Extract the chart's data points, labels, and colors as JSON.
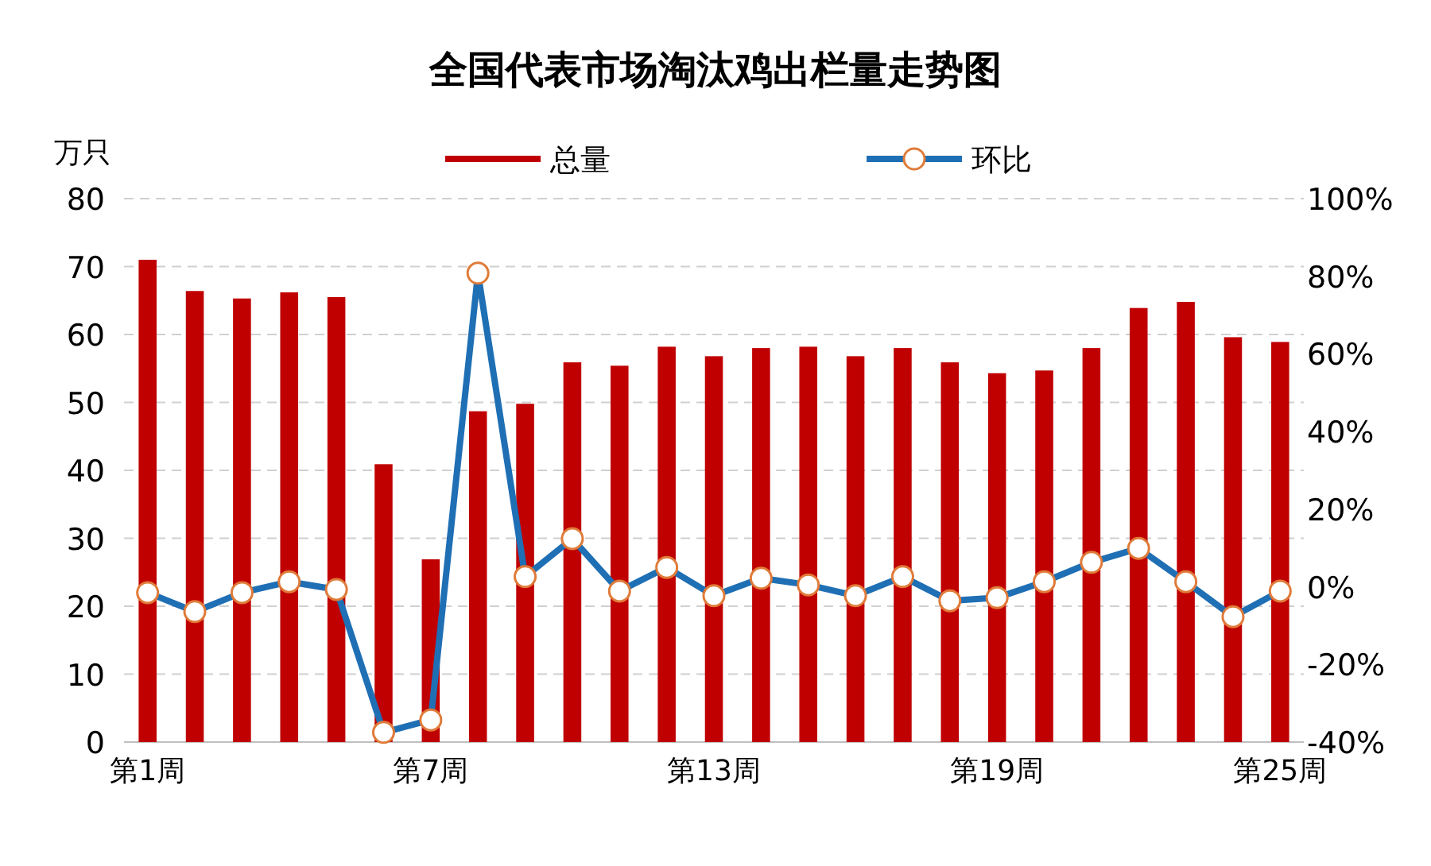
{
  "chart_data": {
    "type": "bar",
    "title": "全国代表市场淘汰鸡出栏量走势图",
    "ylabel": "万只",
    "categories": [
      "第1周",
      null,
      null,
      null,
      null,
      null,
      "第7周",
      null,
      null,
      null,
      null,
      null,
      "第13周",
      null,
      null,
      null,
      null,
      null,
      "第19周",
      null,
      null,
      null,
      null,
      null,
      "第25周"
    ],
    "series": [
      {
        "name": "总量",
        "color": "#c00000",
        "values": [
          71,
          66.4,
          65.3,
          66.2,
          65.5,
          40.9,
          26.9,
          48.7,
          49.8,
          55.9,
          55.4,
          58.2,
          56.8,
          58.0,
          58.2,
          56.8,
          58.0,
          55.9,
          54.3,
          54.7,
          58.0,
          63.9,
          64.8,
          59.6,
          58.9
        ]
      },
      {
        "name": "环比",
        "type": "line",
        "axis": "y2",
        "color": "#1f6fb5",
        "marker": "circle",
        "values": [
          -1.5,
          -6.4,
          -1.5,
          1.3,
          -0.7,
          -37.5,
          -34.3,
          80.8,
          2.6,
          12.4,
          -1.1,
          5.0,
          -2.3,
          2.2,
          0.5,
          -2.3,
          2.6,
          -3.6,
          -2.8,
          1.3,
          6.3,
          9.9,
          1.3,
          -7.7,
          -1.1
        ]
      }
    ],
    "ylim": [
      0,
      80
    ],
    "yticks": [
      0,
      10,
      20,
      30,
      40,
      50,
      60,
      70,
      80
    ],
    "y2lim": [
      -40,
      100
    ],
    "y2ticks": [
      {
        "value": -40,
        "label": "-40%"
      },
      {
        "value": -20,
        "label": "-20%"
      },
      {
        "value": 0,
        "label": "0%"
      },
      {
        "value": 20,
        "label": "20%"
      },
      {
        "value": 40,
        "label": "40%"
      },
      {
        "value": 60,
        "label": "60%"
      },
      {
        "value": 80,
        "label": "80%"
      },
      {
        "value": 100,
        "label": "100%"
      }
    ],
    "grid": "y",
    "legend": "top"
  }
}
